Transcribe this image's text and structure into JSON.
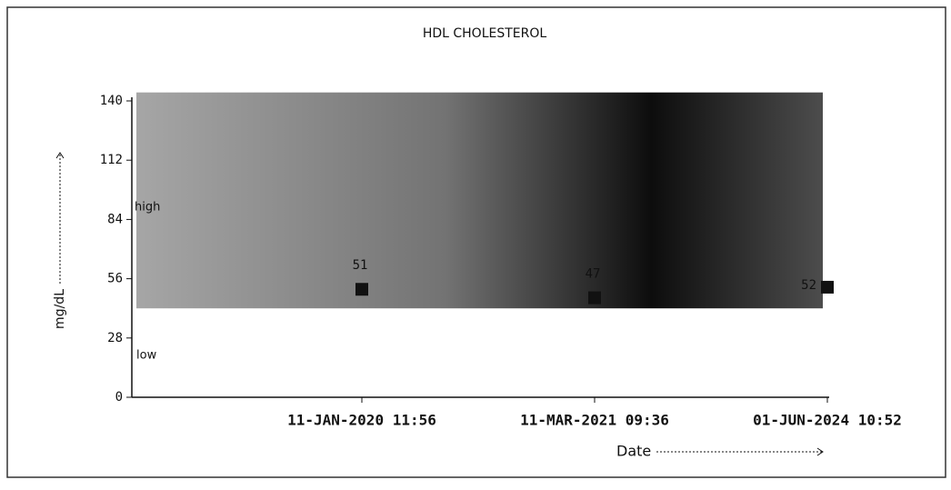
{
  "chart_data": {
    "type": "scatter",
    "title": "HDL CHOLESTEROL",
    "y_label": "mg/dL",
    "x_label": "Date",
    "categories": [
      "11-JAN-2020 11:56",
      "11-MAR-2021 09:36",
      "01-JUN-2024 10:52"
    ],
    "values": [
      51,
      47,
      52
    ],
    "color": "#111111",
    "ylim": [
      0,
      140
    ],
    "yticks": [
      0,
      28,
      56,
      84,
      112,
      140
    ],
    "band": {
      "range": [
        42,
        144
      ],
      "color": "#bdbdbd",
      "upper_label": "high",
      "lower_label": "low"
    }
  }
}
